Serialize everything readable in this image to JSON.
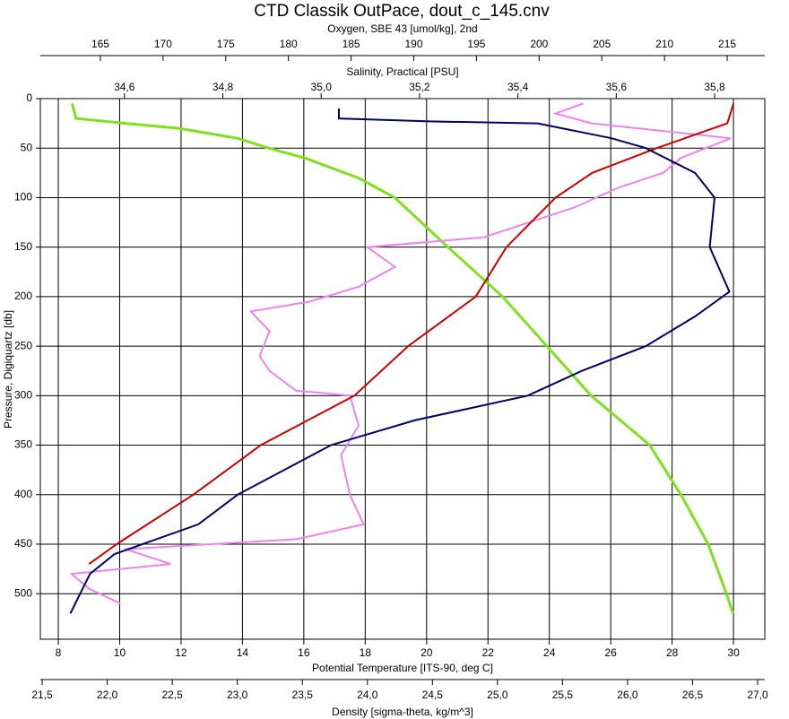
{
  "chart_data": {
    "type": "line",
    "title": "CTD Classik OutPace, dout_c_145.cnv",
    "ylabel": "Pressure, Digiquartz [db]",
    "ylim": [
      0,
      546
    ],
    "y_inverted": true,
    "yticks": [
      0,
      50,
      100,
      150,
      200,
      250,
      300,
      350,
      400,
      450,
      500
    ],
    "grid": true,
    "x_axes": [
      {
        "label": "Oxygen, SBE 43 [umol/kg], 2nd",
        "color": "#ee82ee",
        "xlim": [
          160.21,
          218.0
        ],
        "xticks": [
          165,
          170,
          175,
          180,
          185,
          190,
          195,
          200,
          205,
          210,
          215
        ]
      },
      {
        "label": "Salinity, Practical [PSU]",
        "color": "#000066",
        "xlim": [
          34.429,
          35.902
        ],
        "xticks": [
          {
            "value": 34.6,
            "label": "34,6"
          },
          {
            "value": 34.8,
            "label": "34,8"
          },
          {
            "value": 35.0,
            "label": "35,0"
          },
          {
            "value": 35.2,
            "label": "35,2"
          },
          {
            "value": 35.4,
            "label": "35,4"
          },
          {
            "value": 35.6,
            "label": "35,6"
          },
          {
            "value": 35.8,
            "label": "35,8"
          }
        ]
      },
      {
        "label": "Potential Temperature [ITS-90, deg C]",
        "color": "#cc0000",
        "xlim": [
          7.415,
          31.02
        ],
        "xticks": [
          8,
          10,
          12,
          14,
          16,
          18,
          20,
          22,
          24,
          26,
          28,
          30
        ]
      },
      {
        "label": "Density [sigma-theta, kg/m^3]",
        "color": "#7fe020",
        "xlim": [
          21.486,
          27.055
        ],
        "xticks": [
          {
            "value": 21.5,
            "label": "21,5"
          },
          {
            "value": 22.0,
            "label": "22,0"
          },
          {
            "value": 22.5,
            "label": "22,5"
          },
          {
            "value": 23.0,
            "label": "23,0"
          },
          {
            "value": 23.5,
            "label": "23,5"
          },
          {
            "value": 24.0,
            "label": "24,0"
          },
          {
            "value": 24.5,
            "label": "24,5"
          },
          {
            "value": 25.0,
            "label": "25,0"
          },
          {
            "value": 25.5,
            "label": "25,5"
          },
          {
            "value": 26.0,
            "label": "26,0"
          },
          {
            "value": 26.5,
            "label": "26,5"
          },
          {
            "value": 27.0,
            "label": "27,0"
          }
        ]
      }
    ],
    "series": [
      {
        "x_axis": 3,
        "color": "#7fe020",
        "y": [
          5,
          20,
          25,
          30,
          40,
          50,
          60,
          80,
          100,
          150,
          200,
          250,
          300,
          350,
          400,
          450,
          500,
          520
        ],
        "x": [
          21.73,
          21.76,
          22.14,
          22.55,
          23.0,
          23.24,
          23.52,
          23.93,
          24.21,
          24.62,
          25.04,
          25.38,
          25.72,
          26.17,
          26.41,
          26.62,
          26.76,
          26.81
        ]
      },
      {
        "x_axis": 0,
        "color": "#ee82ee",
        "y": [
          5,
          15,
          25,
          40,
          60,
          75,
          90,
          110,
          140,
          150,
          170,
          190,
          205,
          215,
          235,
          260,
          275,
          295,
          300,
          330,
          360,
          400,
          430,
          445,
          455,
          470,
          480,
          495,
          510
        ],
        "x": [
          203.5,
          201.3,
          204.2,
          215.3,
          211.3,
          209.9,
          206.3,
          202.8,
          195.6,
          186.3,
          188.5,
          185.6,
          181.7,
          177.0,
          178.5,
          177.7,
          178.5,
          180.6,
          184.9,
          185.6,
          184.2,
          184.9,
          186.0,
          180.6,
          167.0,
          170.6,
          162.7,
          164.1,
          166.6
        ]
      },
      {
        "x_axis": 2,
        "color": "#cc0000",
        "y": [
          5,
          25,
          50,
          75,
          100,
          150,
          200,
          250,
          300,
          350,
          400,
          450,
          470
        ],
        "x": [
          30.0,
          29.8,
          27.5,
          25.4,
          24.2,
          22.6,
          21.6,
          19.4,
          17.65,
          14.6,
          12.4,
          9.9,
          9.0
        ]
      },
      {
        "x_axis": 1,
        "color": "#000066",
        "y": [
          10,
          20,
          23,
          25,
          40,
          50,
          75,
          100,
          150,
          195,
          220,
          250,
          275,
          300,
          325,
          350,
          400,
          430,
          460,
          480,
          500,
          520
        ],
        "x": [
          35.036,
          35.036,
          35.22,
          35.44,
          35.59,
          35.66,
          35.76,
          35.8,
          35.79,
          35.83,
          35.76,
          35.66,
          35.53,
          35.42,
          35.19,
          35.02,
          34.83,
          34.75,
          34.58,
          34.53,
          34.51,
          34.49
        ]
      }
    ]
  }
}
